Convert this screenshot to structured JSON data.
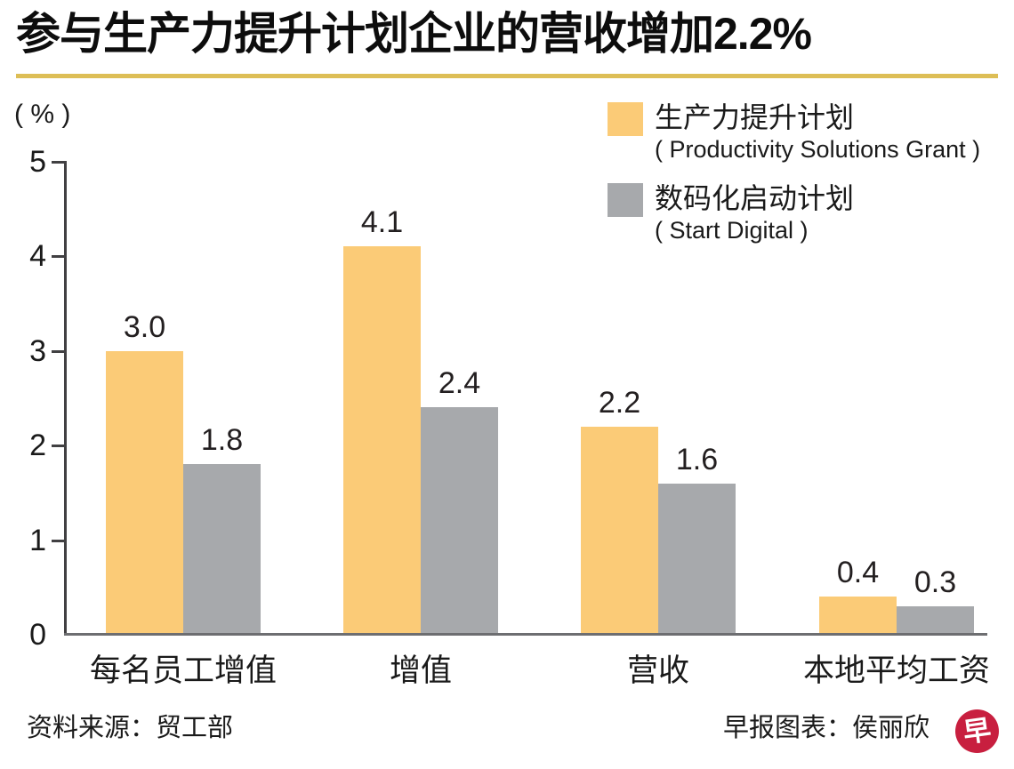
{
  "title": "参与生产力提升计划企业的营收增加2.2%",
  "y_axis_unit_label": "( % )",
  "legend": {
    "items": [
      {
        "label_zh": "生产力提升计划",
        "label_en": "( Productivity Solutions Grant )"
      },
      {
        "label_zh": "数码化启动计划",
        "label_en": "( Start Digital )"
      }
    ]
  },
  "chart_data": {
    "type": "bar",
    "categories": [
      "每名员工增值",
      "增值",
      "营收",
      "本地平均工资"
    ],
    "series": [
      {
        "name": "生产力提升计划 ( Productivity Solutions Grant )",
        "color": "#fbcb77",
        "values": [
          3.0,
          4.1,
          2.2,
          0.4
        ]
      },
      {
        "name": "数码化启动计划 ( Start Digital )",
        "color": "#a7a9ac",
        "values": [
          1.8,
          2.4,
          1.6,
          0.3
        ]
      }
    ],
    "title": "参与生产力提升计划企业的营收增加2.2%",
    "xlabel": "",
    "ylabel": "( % )",
    "ylim": [
      0,
      5
    ],
    "ytick_step": 1,
    "yticks": [
      0,
      1,
      2,
      3,
      4,
      5
    ],
    "value_label_decimals": 1,
    "grid": false,
    "legend_position": "top-right"
  },
  "colors": {
    "bar_yellow": "#fbcb77",
    "bar_gray": "#a7a9ac",
    "title_rule_gold": "#ddbe56",
    "axis": "#414042",
    "baseline": "#6d6e71",
    "logo_red": "#c81f3f"
  },
  "footer": {
    "source": "资料来源：贸工部",
    "credit": "早报图表：侯丽欣",
    "logo_glyph": "早"
  }
}
